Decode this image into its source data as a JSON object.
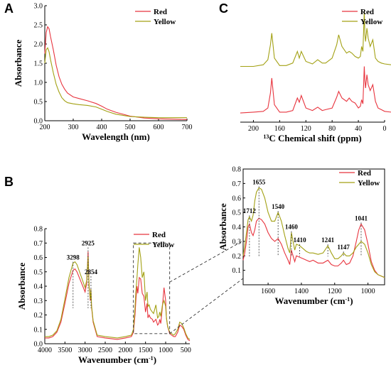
{
  "colors": {
    "red": "#e8353f",
    "yellow": "#a3a114",
    "axis": "#000000",
    "dash": "#333333"
  },
  "chart_data": [
    {
      "panel": "A",
      "type": "line",
      "xlabel": "Wavelength (nm)",
      "ylabel": "Absorbance",
      "xlim": [
        200,
        700
      ],
      "ylim": [
        0,
        3.0
      ],
      "xticks": [
        200,
        300,
        400,
        500,
        600,
        700
      ],
      "yticks": [
        0.0,
        0.5,
        1.0,
        1.5,
        2.0,
        2.5,
        3.0
      ],
      "yticklabels": [
        "0.0",
        "0.5",
        "1.0",
        "1.5",
        "2.0",
        "2.5",
        "3.0"
      ],
      "legend": [
        "Red",
        "Yellow"
      ],
      "legend_position": "top-right",
      "series": [
        {
          "name": "Red",
          "color": "red",
          "x": [
            200,
            205,
            210,
            215,
            220,
            230,
            240,
            250,
            260,
            270,
            280,
            300,
            320,
            350,
            380,
            400,
            420,
            450,
            500,
            550,
            600,
            650,
            700
          ],
          "y": [
            1.75,
            2.3,
            2.45,
            2.4,
            2.2,
            1.85,
            1.45,
            1.15,
            0.95,
            0.82,
            0.72,
            0.62,
            0.58,
            0.52,
            0.45,
            0.38,
            0.3,
            0.22,
            0.12,
            0.07,
            0.05,
            0.04,
            0.03
          ]
        },
        {
          "name": "Yellow",
          "color": "yellow",
          "x": [
            200,
            205,
            210,
            215,
            220,
            230,
            240,
            250,
            260,
            270,
            280,
            300,
            320,
            350,
            380,
            400,
            420,
            450,
            500,
            550,
            600,
            650,
            700
          ],
          "y": [
            1.5,
            1.85,
            1.9,
            1.8,
            1.6,
            1.25,
            0.95,
            0.75,
            0.6,
            0.52,
            0.47,
            0.44,
            0.42,
            0.4,
            0.36,
            0.3,
            0.24,
            0.17,
            0.11,
            0.09,
            0.08,
            0.08,
            0.08
          ]
        }
      ]
    },
    {
      "panel": "C",
      "type": "line",
      "xlabel_prefix": "13",
      "xlabel": "C Chemical shift (ppm)",
      "xlim": [
        220,
        0
      ],
      "xticks": [
        200,
        160,
        120,
        80,
        40,
        0
      ],
      "legend": [
        "Red",
        "Yellow"
      ],
      "legend_position": "top-right",
      "series": [
        {
          "name": "Red",
          "color": "red",
          "x": [
            220,
            200,
            185,
            178,
            174,
            172,
            168,
            160,
            150,
            140,
            133,
            130,
            127,
            120,
            110,
            102,
            95,
            90,
            80,
            73,
            70,
            65,
            58,
            54,
            50,
            45,
            40,
            37,
            35,
            33,
            31,
            30,
            29,
            27,
            25,
            22,
            18,
            14,
            10,
            5,
            0,
            -10
          ],
          "y": [
            0.06,
            0.07,
            0.08,
            0.12,
            0.3,
            0.48,
            0.16,
            0.07,
            0.07,
            0.09,
            0.24,
            0.19,
            0.27,
            0.12,
            0.09,
            0.13,
            0.09,
            0.1,
            0.12,
            0.25,
            0.32,
            0.24,
            0.2,
            0.24,
            0.2,
            0.18,
            0.12,
            0.14,
            0.22,
            0.17,
            0.62,
            0.45,
            0.36,
            0.52,
            0.4,
            0.33,
            0.4,
            0.2,
            0.12,
            0.1,
            0.08,
            0.07
          ]
        },
        {
          "name": "Yellow",
          "color": "yellow",
          "x": [
            220,
            200,
            185,
            178,
            174,
            172,
            168,
            160,
            150,
            140,
            133,
            130,
            127,
            120,
            110,
            102,
            95,
            90,
            80,
            73,
            70,
            65,
            58,
            54,
            50,
            45,
            40,
            37,
            35,
            33,
            31,
            30,
            29,
            27,
            25,
            22,
            18,
            14,
            10,
            5,
            0,
            -10
          ],
          "y": [
            0.62,
            0.62,
            0.64,
            0.7,
            0.88,
            1.02,
            0.72,
            0.63,
            0.63,
            0.66,
            0.8,
            0.72,
            0.8,
            0.68,
            0.65,
            0.7,
            0.66,
            0.66,
            0.72,
            0.88,
            1.0,
            0.86,
            0.78,
            0.8,
            0.78,
            0.74,
            0.72,
            0.74,
            0.86,
            0.8,
            1.28,
            1.0,
            0.92,
            1.08,
            0.96,
            0.86,
            0.94,
            0.72,
            0.68,
            0.66,
            0.65,
            0.64
          ]
        }
      ]
    },
    {
      "panel": "B",
      "type": "line",
      "xlabel": "Wavenumber (cm",
      "xlabel_sup": "-1",
      "xlabel_end": ")",
      "ylabel": "Absorbance",
      "xlim": [
        4000,
        400
      ],
      "ylim": [
        0,
        0.8
      ],
      "xticks": [
        4000,
        3500,
        3000,
        2500,
        2000,
        1500,
        1000,
        500
      ],
      "yticks": [
        0.0,
        0.1,
        0.2,
        0.3,
        0.4,
        0.5,
        0.6,
        0.7,
        0.8
      ],
      "yticklabels": [
        "0.0",
        "0.1",
        "0.2",
        "0.3",
        "0.4",
        "0.5",
        "0.6",
        "0.7",
        "0.8"
      ],
      "legend": [
        "Red",
        "Yellow"
      ],
      "legend_position": "top-right",
      "annotations": [
        {
          "label": "3298",
          "x": 3298,
          "y": 0.56
        },
        {
          "label": "2925",
          "x": 2925,
          "y": 0.66
        },
        {
          "label": "2854",
          "x": 2854,
          "y": 0.46
        }
      ],
      "series": [
        {
          "name": "Red",
          "color": "red",
          "x": [
            4000,
            3900,
            3800,
            3700,
            3600,
            3500,
            3400,
            3300,
            3250,
            3200,
            3100,
            3000,
            2960,
            2930,
            2925,
            2920,
            2900,
            2870,
            2854,
            2840,
            2800,
            2700,
            2500,
            2200,
            2000,
            1850,
            1800,
            1760,
            1740,
            1712,
            1690,
            1655,
            1620,
            1580,
            1540,
            1500,
            1460,
            1440,
            1410,
            1380,
            1330,
            1300,
            1241,
            1200,
            1170,
            1147,
            1120,
            1080,
            1041,
            1000,
            980,
            950,
            900,
            850,
            800,
            760,
            700,
            650,
            600,
            550,
            500,
            450,
            400
          ],
          "y": [
            0.04,
            0.04,
            0.05,
            0.08,
            0.15,
            0.28,
            0.42,
            0.51,
            0.52,
            0.5,
            0.43,
            0.36,
            0.42,
            0.6,
            0.64,
            0.58,
            0.4,
            0.3,
            0.38,
            0.26,
            0.15,
            0.05,
            0.04,
            0.03,
            0.04,
            0.05,
            0.08,
            0.2,
            0.3,
            0.4,
            0.35,
            0.46,
            0.45,
            0.35,
            0.33,
            0.22,
            0.28,
            0.18,
            0.2,
            0.18,
            0.17,
            0.15,
            0.17,
            0.13,
            0.14,
            0.17,
            0.14,
            0.26,
            0.39,
            0.3,
            0.18,
            0.12,
            0.07,
            0.06,
            0.05,
            0.05,
            0.08,
            0.13,
            0.12,
            0.1,
            0.06,
            0.03,
            0.02
          ]
        },
        {
          "name": "Yellow",
          "color": "yellow",
          "x": [
            4000,
            3900,
            3800,
            3700,
            3600,
            3500,
            3400,
            3300,
            3250,
            3200,
            3100,
            3000,
            2960,
            2930,
            2925,
            2920,
            2900,
            2870,
            2854,
            2840,
            2800,
            2700,
            2500,
            2200,
            2000,
            1850,
            1800,
            1760,
            1740,
            1712,
            1690,
            1655,
            1620,
            1580,
            1540,
            1500,
            1460,
            1440,
            1410,
            1380,
            1330,
            1300,
            1241,
            1200,
            1170,
            1147,
            1120,
            1080,
            1041,
            1000,
            980,
            950,
            900,
            850,
            800,
            760,
            700,
            650,
            600,
            550,
            500,
            450,
            400
          ],
          "y": [
            0.05,
            0.05,
            0.06,
            0.09,
            0.17,
            0.31,
            0.46,
            0.56,
            0.57,
            0.55,
            0.47,
            0.39,
            0.44,
            0.58,
            0.61,
            0.55,
            0.4,
            0.31,
            0.38,
            0.27,
            0.16,
            0.06,
            0.05,
            0.04,
            0.05,
            0.06,
            0.1,
            0.25,
            0.36,
            0.46,
            0.55,
            0.67,
            0.6,
            0.46,
            0.5,
            0.3,
            0.36,
            0.26,
            0.27,
            0.24,
            0.22,
            0.21,
            0.27,
            0.18,
            0.19,
            0.22,
            0.19,
            0.27,
            0.3,
            0.26,
            0.18,
            0.12,
            0.08,
            0.07,
            0.06,
            0.07,
            0.1,
            0.15,
            0.14,
            0.11,
            0.07,
            0.04,
            0.03
          ]
        }
      ]
    },
    {
      "panel": "B-inset",
      "type": "line",
      "xlabel": "Wavenumber (cm",
      "xlabel_sup": "-1",
      "xlabel_end": ")",
      "ylabel": "Absorbance",
      "xlim": [
        1750,
        900
      ],
      "ylim": [
        0.0,
        0.8
      ],
      "xticks": [
        1600,
        1400,
        1200,
        1000
      ],
      "yticks": [
        0.1,
        0.2,
        0.3,
        0.4,
        0.5,
        0.6,
        0.7,
        0.8
      ],
      "yticklabels": [
        "0.1",
        "0.2",
        "0.3",
        "0.4",
        "0.5",
        "0.6",
        "0.7",
        "0.8"
      ],
      "legend": [
        "Red",
        "Yellow"
      ],
      "legend_position": "top-right",
      "annotations": [
        {
          "label": "1712",
          "x": 1712,
          "y": 0.47
        },
        {
          "label": "1655",
          "x": 1655,
          "y": 0.67
        },
        {
          "label": "1540",
          "x": 1540,
          "y": 0.5
        },
        {
          "label": "1460",
          "x": 1460,
          "y": 0.36
        },
        {
          "label": "1410",
          "x": 1410,
          "y": 0.27
        },
        {
          "label": "1241",
          "x": 1241,
          "y": 0.27
        },
        {
          "label": "1147",
          "x": 1147,
          "y": 0.22
        },
        {
          "label": "1041",
          "x": 1041,
          "y": 0.42
        }
      ],
      "series": [
        {
          "name": "Red",
          "color": "red",
          "x": [
            1750,
            1740,
            1730,
            1720,
            1712,
            1700,
            1690,
            1680,
            1670,
            1655,
            1640,
            1620,
            1600,
            1580,
            1560,
            1540,
            1520,
            1500,
            1480,
            1470,
            1460,
            1450,
            1440,
            1430,
            1410,
            1390,
            1370,
            1350,
            1330,
            1300,
            1270,
            1241,
            1220,
            1200,
            1180,
            1160,
            1147,
            1130,
            1110,
            1090,
            1070,
            1055,
            1041,
            1020,
            1000,
            980,
            960,
            940,
            920,
            900
          ],
          "y": [
            0.17,
            0.22,
            0.3,
            0.4,
            0.42,
            0.36,
            0.34,
            0.38,
            0.44,
            0.46,
            0.45,
            0.42,
            0.36,
            0.32,
            0.3,
            0.32,
            0.28,
            0.22,
            0.17,
            0.14,
            0.24,
            0.2,
            0.16,
            0.2,
            0.19,
            0.18,
            0.17,
            0.16,
            0.17,
            0.15,
            0.15,
            0.17,
            0.14,
            0.13,
            0.13,
            0.15,
            0.17,
            0.14,
            0.15,
            0.2,
            0.3,
            0.38,
            0.42,
            0.38,
            0.28,
            0.16,
            0.1,
            0.07,
            0.06,
            0.05
          ]
        },
        {
          "name": "Yellow",
          "color": "yellow",
          "x": [
            1750,
            1740,
            1730,
            1720,
            1712,
            1700,
            1690,
            1680,
            1670,
            1655,
            1640,
            1620,
            1600,
            1580,
            1560,
            1540,
            1520,
            1500,
            1480,
            1470,
            1460,
            1450,
            1440,
            1430,
            1410,
            1390,
            1370,
            1350,
            1330,
            1300,
            1270,
            1241,
            1220,
            1200,
            1180,
            1160,
            1147,
            1130,
            1110,
            1090,
            1070,
            1055,
            1041,
            1020,
            1000,
            980,
            960,
            940,
            920,
            900
          ],
          "y": [
            0.2,
            0.27,
            0.36,
            0.45,
            0.47,
            0.44,
            0.48,
            0.58,
            0.64,
            0.67,
            0.66,
            0.6,
            0.5,
            0.44,
            0.44,
            0.5,
            0.44,
            0.34,
            0.25,
            0.22,
            0.36,
            0.3,
            0.24,
            0.28,
            0.27,
            0.25,
            0.23,
            0.22,
            0.22,
            0.21,
            0.22,
            0.27,
            0.22,
            0.18,
            0.18,
            0.2,
            0.22,
            0.2,
            0.2,
            0.22,
            0.26,
            0.28,
            0.3,
            0.28,
            0.22,
            0.14,
            0.09,
            0.07,
            0.06,
            0.05
          ]
        }
      ]
    }
  ]
}
